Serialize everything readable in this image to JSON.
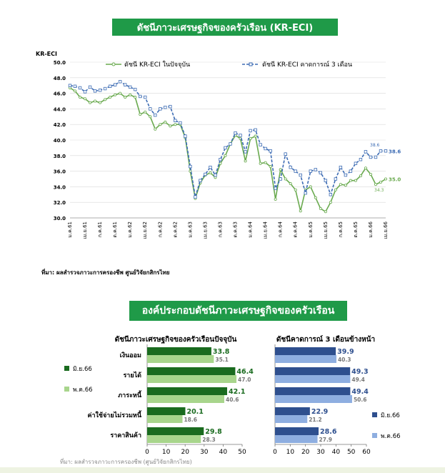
{
  "title_main": "ดัชนีภาวะเศรษฐกิจของครัวเรือน (KR-ECI)",
  "title_components": "องค์ประกอบดัชนีภาวะเศรษฐกิจของครัวเรือน",
  "source_1": "ที่มา: ผลสำรวจภาวะการครองชีพ ศูนย์วิจัยกสิกรไทย",
  "source_2": "ที่มา: ผลสำรวจภาวะการครองชีพ (ศูนย์วิจัยกสิกรไทย)",
  "colors": {
    "banner": "#1f9a48",
    "line_current": "#6aaa4f",
    "line_expect": "#3d6cb4",
    "bar_dark_green": "#1a6b1f",
    "bar_light_green": "#a8d58c",
    "bar_dark_blue": "#2e4f8e",
    "bar_light_blue": "#8eaee0"
  },
  "chart_data": [
    {
      "type": "line",
      "ylabel": "KR-ECI",
      "ylim": [
        30.0,
        50.0
      ],
      "yticks": [
        "50.0",
        "48.0",
        "46.0",
        "44.0",
        "42.0",
        "40.0",
        "38.0",
        "36.0",
        "34.0",
        "32.0",
        "30.0"
      ],
      "xtick_labels": [
        "ม.ค.61",
        "เม.ย.61",
        "ก.ค.61",
        "ต.ค.61",
        "ม.ค.62",
        "เม.ย.62",
        "ก.ค.62",
        "ต.ค.62",
        "ม.ค.63",
        "เม.ย.63",
        "ก.ค.63",
        "ต.ค.63",
        "ม.ค.64",
        "เม.ย.64",
        "ก.ค.64",
        "ต.ค.64",
        "ม.ค.65",
        "เม.ย.65",
        "ก.ค.65",
        "ต.ค.65",
        "ม.ค.66",
        "เม.ย.66"
      ],
      "series": [
        {
          "name": "ดัชนี KR-ECI ในปัจจุบัน",
          "values": [
            46.7,
            46.3,
            45.5,
            45.3,
            44.8,
            45.0,
            44.8,
            45.2,
            45.5,
            45.8,
            46.0,
            45.5,
            45.8,
            45.5,
            43.3,
            43.6,
            43.0,
            41.4,
            42.0,
            42.3,
            41.8,
            42.0,
            42.0,
            40.3,
            36.0,
            32.5,
            34.5,
            35.5,
            35.8,
            35.2,
            37.0,
            38.0,
            39.5,
            40.6,
            40.2,
            37.3,
            40.2,
            40.5,
            37.0,
            37.1,
            36.6,
            32.4,
            36.2,
            35.0,
            34.4,
            33.6,
            30.9,
            33.6,
            34.0,
            32.6,
            31.2,
            30.8,
            32.0,
            33.6,
            34.3,
            34.2,
            34.8,
            34.8,
            35.4,
            36.4,
            35.6,
            34.3,
            34.6,
            35.0
          ]
        },
        {
          "name": "ดัชนี KR-ECI คาดการณ์ 3 เดือน",
          "values": [
            47.0,
            46.9,
            46.7,
            46.2,
            46.8,
            46.3,
            46.4,
            46.6,
            46.9,
            47.1,
            47.5,
            47.1,
            46.8,
            46.5,
            45.6,
            45.5,
            44.0,
            43.2,
            44.0,
            44.2,
            44.3,
            42.5,
            42.2,
            40.5,
            36.6,
            32.7,
            34.8,
            35.6,
            36.5,
            35.5,
            37.5,
            39.0,
            39.5,
            40.9,
            40.6,
            38.5,
            41.2,
            41.3,
            39.4,
            38.9,
            38.6,
            33.8,
            35.0,
            38.2,
            36.5,
            36.0,
            35.5,
            33.2,
            36.0,
            36.2,
            35.8,
            34.8,
            33.0,
            35.0,
            36.5,
            35.5,
            36.0,
            37.0,
            37.5,
            38.5,
            37.8,
            37.8,
            38.6,
            38.6
          ]
        }
      ],
      "labels": {
        "current_last": "35.0",
        "expect_last": "38.6",
        "expect_note": "38.6",
        "current_note": "34.3"
      },
      "legend_position": "top"
    },
    {
      "type": "bar",
      "orientation": "horizontal",
      "title": "ดัชนีภาวะเศรษฐกิจของครัวเรือนปัจจุบัน",
      "categories": [
        "เงินออม",
        "รายได้",
        "ภาระหนี้",
        "ค่าใช้จ่ายไม่รวมหนี้",
        "ราคาสินค้า"
      ],
      "series": [
        {
          "name": "มิ.ย.66",
          "values": [
            33.8,
            46.4,
            42.1,
            20.1,
            29.8
          ]
        },
        {
          "name": "พ.ค.66",
          "values": [
            35.1,
            47.0,
            40.6,
            18.6,
            28.3
          ]
        }
      ],
      "xlim": [
        0,
        50
      ],
      "xticks": [
        "0",
        "10",
        "20",
        "30",
        "40",
        "50"
      ]
    },
    {
      "type": "bar",
      "orientation": "horizontal",
      "title": "ดัชนีคาดการณ์ 3 เดือนข้างหน้า",
      "categories": [
        "เงินออม",
        "รายได้",
        "ภาระหนี้",
        "ค่าใช้จ่ายไม่รวมหนี้",
        "ราคาสินค้า"
      ],
      "series": [
        {
          "name": "มิ.ย.66",
          "values": [
            39.9,
            49.3,
            49.4,
            22.9,
            28.6
          ]
        },
        {
          "name": "พ.ค.66",
          "values": [
            40.3,
            49.4,
            50.6,
            21.2,
            27.9
          ]
        }
      ],
      "xlim": [
        0,
        60
      ],
      "xticks": [
        "0",
        "10",
        "20",
        "30",
        "40",
        "50",
        "60"
      ]
    }
  ]
}
